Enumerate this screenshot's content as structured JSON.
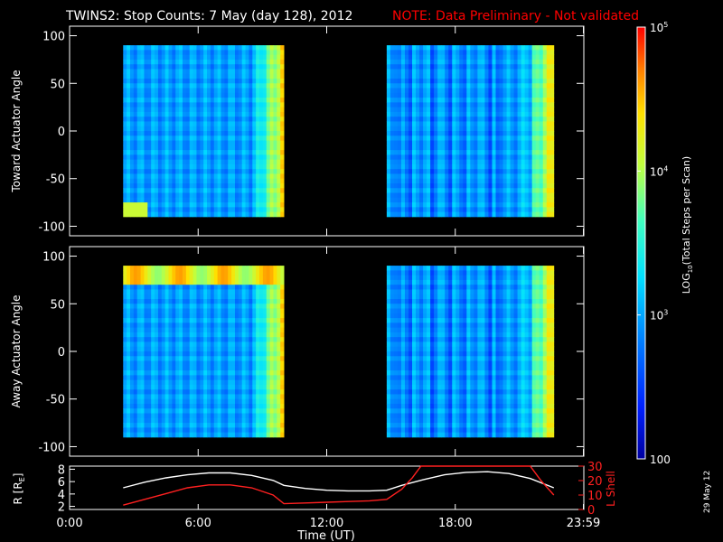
{
  "header": {
    "title": "TWINS2: Stop Counts:  7 May (day 128), 2012",
    "note": "NOTE: Data Preliminary - Not validated"
  },
  "colors": {
    "background": "#000000",
    "foreground": "#ffffff",
    "note": "#ff0000",
    "lshell": "#ff2020"
  },
  "footer": {
    "date_stamp": "29 May 12"
  },
  "chart_data": [
    {
      "type": "heatmap",
      "ylabel": "Toward Actuator Angle",
      "ylim": [
        -110,
        110
      ],
      "yticks": [
        100,
        50,
        0,
        -50,
        -100
      ],
      "xlim": [
        0,
        24
      ],
      "data_blocks": [
        {
          "start_hour": 2.5,
          "end_hour": 10.0,
          "angle_range": [
            -90,
            90
          ]
        },
        {
          "start_hour": 14.8,
          "end_hour": 22.6,
          "angle_range": [
            -90,
            90
          ]
        }
      ]
    },
    {
      "type": "heatmap",
      "ylabel": "Away Actuator Angle",
      "ylim": [
        -110,
        110
      ],
      "yticks": [
        100,
        50,
        0,
        -50,
        -100
      ],
      "xlim": [
        0,
        24
      ],
      "data_blocks": [
        {
          "start_hour": 2.5,
          "end_hour": 10.0,
          "angle_range": [
            -90,
            90
          ]
        },
        {
          "start_hour": 14.8,
          "end_hour": 22.6,
          "angle_range": [
            -90,
            90
          ]
        }
      ]
    },
    {
      "type": "line",
      "xlabel": "Time (UT)",
      "xticks": [
        "0:00",
        "6:00",
        "12:00",
        "18:00",
        "23:59"
      ],
      "xtick_hours": [
        0,
        6,
        12,
        18,
        23.98
      ],
      "xlim": [
        0,
        24
      ],
      "left_axis": {
        "label": "R [R",
        "label_sub": "E",
        "label_end": "]",
        "ylim": [
          1.5,
          8.5
        ],
        "ticks": [
          8,
          6,
          4,
          2
        ]
      },
      "right_axis": {
        "label": "L Shell",
        "ylim": [
          0,
          30
        ],
        "ticks": [
          30,
          20,
          10,
          0
        ]
      },
      "series": [
        {
          "axis": "left",
          "x": [
            2.5,
            3.5,
            4.5,
            5.5,
            6.5,
            7.5,
            8.5,
            9.5,
            10.0,
            11,
            12,
            13,
            14,
            14.8,
            15.5,
            16.5,
            17.5,
            18.5,
            19.5,
            20.5,
            21.5,
            22.6
          ],
          "y": [
            5.0,
            5.9,
            6.6,
            7.1,
            7.4,
            7.4,
            7.0,
            6.2,
            5.4,
            4.9,
            4.6,
            4.5,
            4.5,
            4.6,
            5.4,
            6.3,
            7.1,
            7.5,
            7.6,
            7.3,
            6.5,
            5.0
          ]
        },
        {
          "axis": "right",
          "x": [
            2.5,
            3.5,
            4.5,
            5.5,
            6.5,
            7.5,
            8.5,
            9.5,
            10.0,
            11,
            12,
            13,
            14,
            14.8,
            15.5,
            16.0,
            16.4,
            21.5,
            22.0,
            22.6
          ],
          "y": [
            3,
            7,
            11,
            15,
            17,
            17,
            15,
            10,
            4,
            4.5,
            5,
            5.5,
            6,
            7,
            14,
            22,
            30,
            30,
            20,
            10
          ]
        }
      ]
    },
    {
      "type": "colorbar",
      "scale": "log",
      "range": [
        100,
        100000
      ],
      "tick_labels": [
        "100",
        "10",
        "10",
        "10"
      ],
      "tick_exponents": [
        "",
        "3",
        "4",
        "5"
      ],
      "tick_values": [
        100,
        1000,
        10000,
        100000
      ],
      "title": "LOG",
      "title_sub": "10",
      "title_rest": "(Total Steps per Scan)"
    }
  ]
}
